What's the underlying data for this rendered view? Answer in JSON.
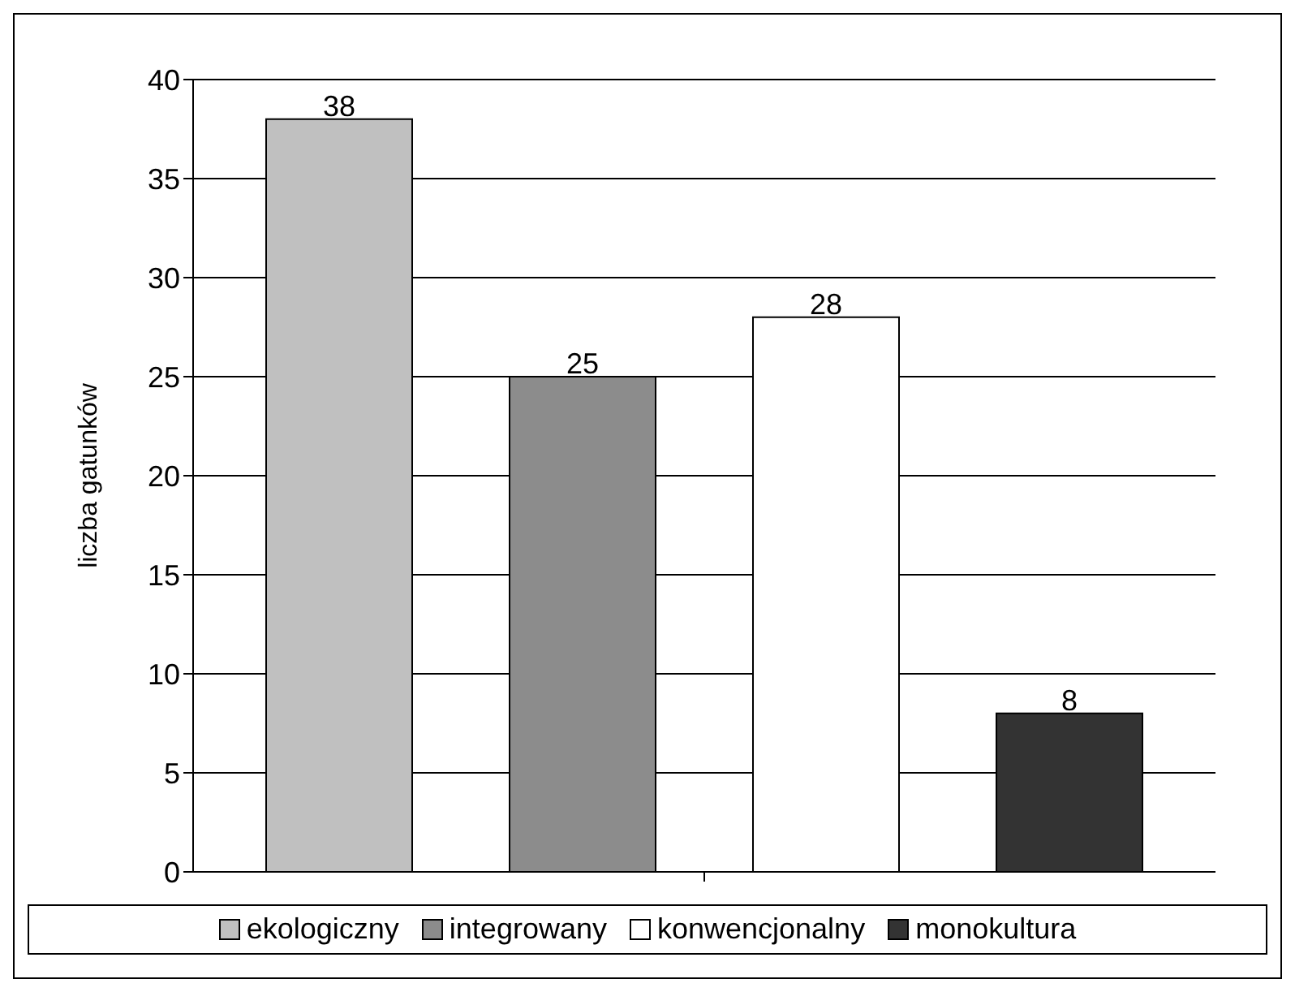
{
  "chart_data": {
    "type": "bar",
    "ylabel": "liczba gatunków",
    "categories": [
      null
    ],
    "series": [
      {
        "name": "ekologiczny",
        "color": "#c0c0c0",
        "values": [
          38
        ]
      },
      {
        "name": "integrowany",
        "color": "#8c8c8c",
        "values": [
          25
        ]
      },
      {
        "name": "konwencjonalny",
        "color": "#ffffff",
        "values": [
          28
        ]
      },
      {
        "name": "monokultura",
        "color": "#333333",
        "values": [
          8
        ]
      }
    ],
    "ylim": [
      0,
      40
    ],
    "yticks": [
      0,
      5,
      10,
      15,
      20,
      25,
      30,
      35,
      40
    ],
    "grid": "y",
    "legend": "bottom",
    "data_labels": true
  }
}
